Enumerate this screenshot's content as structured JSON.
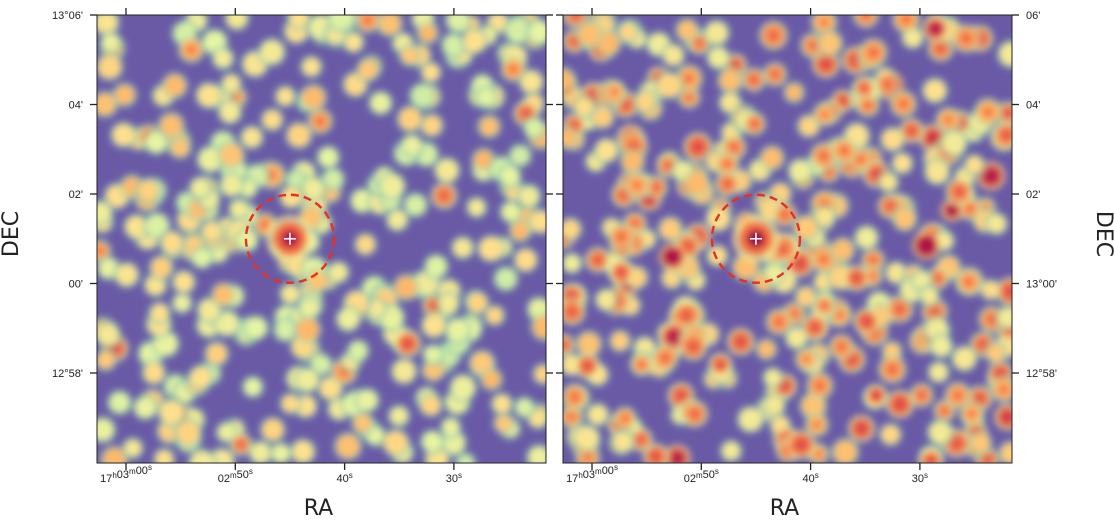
{
  "colors": {
    "background": "#6a5aa6",
    "source_circle": "#e83020",
    "source_marker": "#ffffff",
    "colormap": [
      "#6a5aa6",
      "#5aa4b2",
      "#a6dbaa",
      "#e6f5a2",
      "#fee08b",
      "#fdae61",
      "#f46d43",
      "#d53e4f",
      "#9e0142"
    ]
  },
  "chart_data": [
    {
      "type": "heatmap",
      "panel": "left",
      "xlabel": "RA",
      "ylabel": "DEC",
      "x_ticks": [
        {
          "label_html": "17<sup>h</sup>03<sup>m</sup>00<sup>s</sup>",
          "text": "17h03m00s",
          "value_s": 180
        },
        {
          "text": "02m50s",
          "value_s": 170
        },
        {
          "text": "40s",
          "value_s": 160
        },
        {
          "text": "30s",
          "value_s": 150
        }
      ],
      "y_ticks": [
        {
          "text": "13°06'",
          "value_arcmin": 786
        },
        {
          "text": "04'",
          "value_arcmin": 784
        },
        {
          "text": "02'",
          "value_arcmin": 782
        },
        {
          "text": "00'",
          "value_arcmin": 780
        },
        {
          "text": "12°58'",
          "value_arcmin": 778
        }
      ],
      "source": {
        "ra": "17h02m45s",
        "dec": "13°01'"
      },
      "peak_level": 0.95,
      "background_level": 0.6
    },
    {
      "type": "heatmap",
      "panel": "right",
      "xlabel": "RA",
      "ylabel": "DEC",
      "x_ticks": [
        {
          "text": "17h03m00s",
          "value_s": 180
        },
        {
          "text": "02m50s",
          "value_s": 170
        },
        {
          "text": "40s",
          "value_s": 160
        },
        {
          "text": "30s",
          "value_s": 150
        }
      ],
      "y_ticks": [
        {
          "text": "06'",
          "value_arcmin": 786
        },
        {
          "text": "04'",
          "value_arcmin": 784
        },
        {
          "text": "02'",
          "value_arcmin": 782
        },
        {
          "text": "13°00'",
          "value_arcmin": 780
        },
        {
          "text": "12°58'",
          "value_arcmin": 778
        }
      ],
      "source": {
        "ra": "17h02m45s",
        "dec": "13°01'"
      },
      "peak_level": 1.0,
      "background_level": 0.75
    }
  ]
}
